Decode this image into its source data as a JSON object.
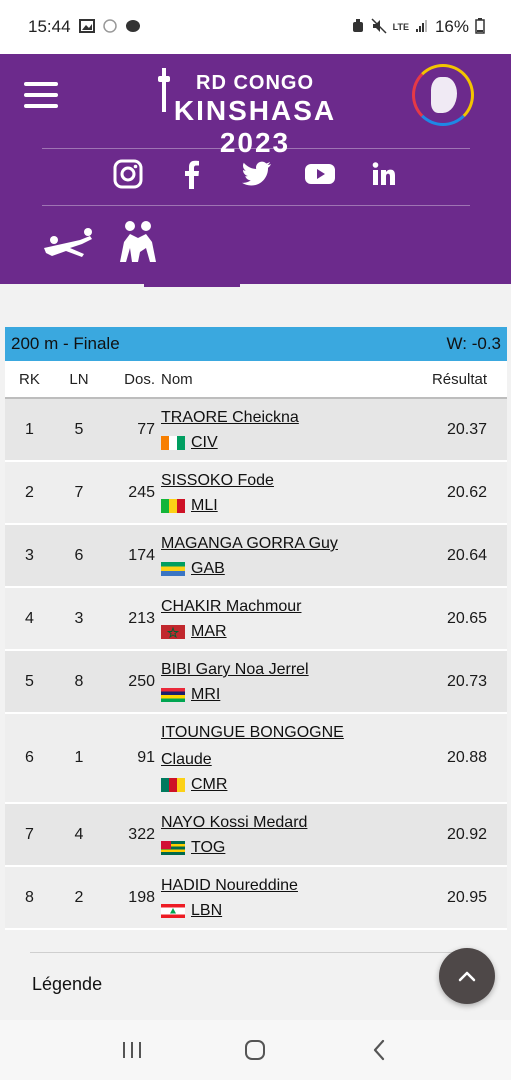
{
  "status_bar": {
    "time": "15:44",
    "battery": "16%",
    "network": "LTE"
  },
  "header": {
    "brand_line1": "RD CONGO",
    "brand_line2": "KINSHASA 2023",
    "accent_color": "#6c2a8c",
    "social_icons": [
      "instagram-icon",
      "facebook-icon",
      "twitter-icon",
      "youtube-icon",
      "linkedin-icon"
    ],
    "sport_icons": [
      "volleyball-icon",
      "wrestling-icon"
    ]
  },
  "event": {
    "title": "200 m - Finale",
    "wind": "W:  -0.3",
    "bar_color": "#3aa8df"
  },
  "columns": {
    "rk": "RK",
    "ln": "LN",
    "dos": "Dos.",
    "name": "Nom",
    "result": "Résultat"
  },
  "rows": [
    {
      "rk": "1",
      "ln": "5",
      "dos": "77",
      "name": "TRAORE Cheickna",
      "country": "CIV",
      "result": "20.37"
    },
    {
      "rk": "2",
      "ln": "7",
      "dos": "245",
      "name": "SISSOKO Fode",
      "country": "MLI",
      "result": "20.62"
    },
    {
      "rk": "3",
      "ln": "6",
      "dos": "174",
      "name": "MAGANGA GORRA Guy",
      "country": "GAB",
      "result": "20.64"
    },
    {
      "rk": "4",
      "ln": "3",
      "dos": "213",
      "name": "CHAKIR Machmour",
      "country": "MAR",
      "result": "20.65"
    },
    {
      "rk": "5",
      "ln": "8",
      "dos": "250",
      "name": "BIBI Gary Noa Jerrel",
      "country": "MRI",
      "result": "20.73"
    },
    {
      "rk": "6",
      "ln": "1",
      "dos": "91",
      "name": "ITOUNGUE BONGOGNE Claude",
      "country": "CMR",
      "result": "20.88"
    },
    {
      "rk": "7",
      "ln": "4",
      "dos": "322",
      "name": "NAYO Kossi Medard",
      "country": "TOG",
      "result": "20.92"
    },
    {
      "rk": "8",
      "ln": "2",
      "dos": "198",
      "name": "HADID Noureddine",
      "country": "LBN",
      "result": "20.95"
    }
  ],
  "legend": "Légende"
}
